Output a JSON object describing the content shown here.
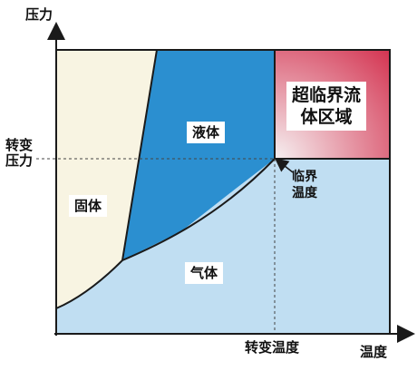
{
  "axes": {
    "y_label": "压力",
    "x_label": "温度",
    "y_mark_line1": "转变",
    "y_mark_line2": "压力",
    "x_mark": "转变温度"
  },
  "regions": {
    "solid": "固体",
    "liquid": "液体",
    "gas": "气体",
    "supercritical_line1": "超临界流",
    "supercritical_line2": "体区域"
  },
  "critical_point": {
    "line1": "临界",
    "line2": "温度"
  },
  "colors": {
    "solid": "#f8f4e2",
    "liquid": "#2b8fd0",
    "gas": "#c0def2",
    "supercritical_inner": "#f6f0f1",
    "supercritical_outer": "#d43552",
    "lines": "#1a1a1a"
  }
}
